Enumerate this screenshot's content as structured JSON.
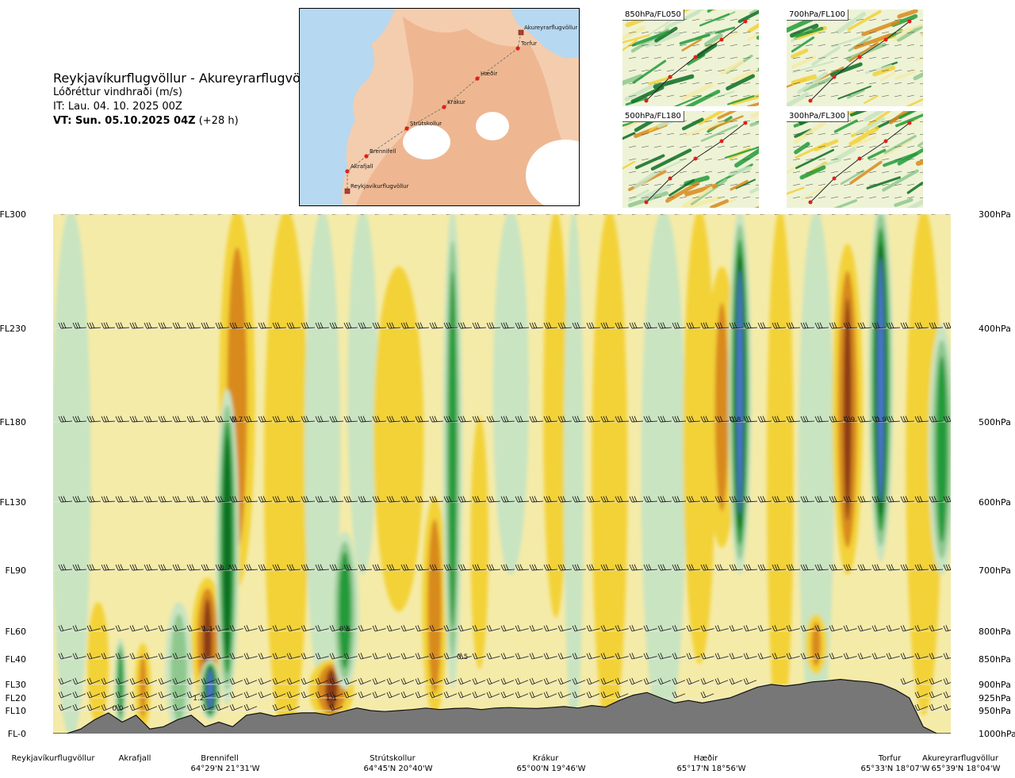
{
  "header": {
    "route": "Reykjavíkurflugvöllur - Akureyrarflugvöllur",
    "parameter": "Lóðréttur vindhraði (m/s)",
    "issue_time": "IT: Lau. 04. 10. 2025 00Z",
    "valid_label": "VT: Sun. 05.10.2025 04Z",
    "valid_offset": "(+28 h)"
  },
  "map": {
    "stations": [
      {
        "name": "Akureyrarflugvöllur"
      },
      {
        "name": "Torfur"
      },
      {
        "name": "Hæðir"
      },
      {
        "name": "Krákur"
      },
      {
        "name": "Strútskollur"
      },
      {
        "name": "Brennifell"
      },
      {
        "name": "Akrafjall"
      },
      {
        "name": "Reykjavíkurflugvöllur"
      }
    ]
  },
  "level_panels": [
    {
      "label": "850hPa/FL050"
    },
    {
      "label": "700hPa/FL100"
    },
    {
      "label": "500hPa/FL180"
    },
    {
      "label": "300hPa/FL300"
    }
  ],
  "colors": {
    "strong_down": "#8b3a12",
    "down": "#d98a1c",
    "weak_down": "#f3d238",
    "slight_down": "#f5eba8",
    "slight_up": "#c9e4c1",
    "weak_up": "#8fc88f",
    "up": "#239b3a",
    "strong_up": "#0b6f22",
    "very_strong_up": "#4a73c9",
    "terrain": "#777777"
  },
  "chart_data": {
    "type": "heatmap",
    "title": "Lóðréttur vindhraði (m/s)",
    "y_axis_left": [
      "FL300",
      "FL230",
      "FL180",
      "FL130",
      "FL90",
      "FL60",
      "FL40",
      "FL30",
      "FL20",
      "FL10",
      "FL-0"
    ],
    "y_axis_right": [
      "300hPa",
      "400hPa",
      "500hPa",
      "600hPa",
      "700hPa",
      "800hPa",
      "850hPa",
      "900hPa",
      "925hPa",
      "950hPa",
      "1000hPa"
    ],
    "pressure_levels_hpa": [
      300,
      400,
      500,
      600,
      700,
      800,
      850,
      900,
      925,
      950,
      1000
    ],
    "x_waypoints": [
      {
        "name": "Reykjavíkurflugvöllur",
        "coord": "",
        "dist": 0.0
      },
      {
        "name": "Akrafjall",
        "coord": "",
        "dist": 0.09
      },
      {
        "name": "Brennifell",
        "coord": "64°29'N 21°31'W",
        "dist": 0.19
      },
      {
        "name": "Strútskollur",
        "coord": "64°45'N 20°40'W",
        "dist": 0.38
      },
      {
        "name": "Krákur",
        "coord": "65°00'N 19°46'W",
        "dist": 0.56
      },
      {
        "name": "Hæðir",
        "coord": "65°17'N 18°56'W",
        "dist": 0.76
      },
      {
        "name": "Torfur",
        "coord": "65°33'N 18°07'W",
        "dist": 0.95
      },
      {
        "name": "Akureyrarflugvöllur",
        "coord": "65°39'N 18°04'W",
        "dist": 1.0
      }
    ],
    "contour_labels": [
      {
        "text": "0.7",
        "dist": 0.205,
        "p": 500
      },
      {
        "text": "0.7",
        "dist": 0.192,
        "p": 700
      },
      {
        "text": "1.1",
        "dist": 0.172,
        "p": 800
      },
      {
        "text": "1.2",
        "dist": 0.162,
        "p": 930
      },
      {
        "text": "0.0",
        "dist": 0.072,
        "p": 950
      },
      {
        "text": "0.6",
        "dist": 0.325,
        "p": 800
      },
      {
        "text": "0.5",
        "dist": 0.456,
        "p": 850
      },
      {
        "text": "1.1",
        "dist": 0.31,
        "p": 930
      },
      {
        "text": "0.8",
        "dist": 0.76,
        "p": 500
      },
      {
        "text": "0.9",
        "dist": 0.887,
        "p": 500
      },
      {
        "text": "0.9",
        "dist": 0.922,
        "p": 500
      }
    ],
    "bands": [
      {
        "dist": 0.02,
        "p_top": 300,
        "p_bot": 1000,
        "width": 0.022,
        "value": 0.2
      },
      {
        "dist": 0.05,
        "p_top": 760,
        "p_bot": 970,
        "width": 0.012,
        "value": -0.5
      },
      {
        "dist": 0.075,
        "p_top": 820,
        "p_bot": 980,
        "width": 0.007,
        "value": 0.6
      },
      {
        "dist": 0.1,
        "p_top": 830,
        "p_bot": 980,
        "width": 0.009,
        "value": -0.6
      },
      {
        "dist": 0.14,
        "p_top": 760,
        "p_bot": 990,
        "width": 0.015,
        "value": 0.5
      },
      {
        "dist": 0.172,
        "p_top": 720,
        "p_bot": 930,
        "width": 0.018,
        "value": -1.1
      },
      {
        "dist": 0.175,
        "p_top": 860,
        "p_bot": 960,
        "width": 0.012,
        "value": 1.2
      },
      {
        "dist": 0.205,
        "p_top": 300,
        "p_bot": 720,
        "width": 0.02,
        "value": -0.8
      },
      {
        "dist": 0.194,
        "p_top": 470,
        "p_bot": 930,
        "width": 0.013,
        "value": 0.8
      },
      {
        "dist": 0.26,
        "p_top": 300,
        "p_bot": 1000,
        "width": 0.025,
        "value": -0.2
      },
      {
        "dist": 0.3,
        "p_top": 300,
        "p_bot": 900,
        "width": 0.02,
        "value": 0.2
      },
      {
        "dist": 0.31,
        "p_top": 860,
        "p_bot": 960,
        "width": 0.025,
        "value": -1.0
      },
      {
        "dist": 0.325,
        "p_top": 650,
        "p_bot": 900,
        "width": 0.016,
        "value": 0.7
      },
      {
        "dist": 0.345,
        "p_top": 300,
        "p_bot": 700,
        "width": 0.017,
        "value": 0.3
      },
      {
        "dist": 0.385,
        "p_top": 350,
        "p_bot": 760,
        "width": 0.028,
        "value": -0.4
      },
      {
        "dist": 0.425,
        "p_top": 600,
        "p_bot": 950,
        "width": 0.014,
        "value": -0.8
      },
      {
        "dist": 0.445,
        "p_top": 300,
        "p_bot": 900,
        "width": 0.011,
        "value": 0.6
      },
      {
        "dist": 0.475,
        "p_top": 500,
        "p_bot": 860,
        "width": 0.01,
        "value": -0.3
      },
      {
        "dist": 0.51,
        "p_top": 300,
        "p_bot": 700,
        "width": 0.02,
        "value": 0.3
      },
      {
        "dist": 0.56,
        "p_top": 300,
        "p_bot": 770,
        "width": 0.014,
        "value": -0.5
      },
      {
        "dist": 0.58,
        "p_top": 300,
        "p_bot": 1000,
        "width": 0.011,
        "value": 0.3
      },
      {
        "dist": 0.62,
        "p_top": 300,
        "p_bot": 1000,
        "width": 0.02,
        "value": -0.2
      },
      {
        "dist": 0.68,
        "p_top": 300,
        "p_bot": 1000,
        "width": 0.025,
        "value": 0.2
      },
      {
        "dist": 0.72,
        "p_top": 300,
        "p_bot": 850,
        "width": 0.018,
        "value": -0.3
      },
      {
        "dist": 0.745,
        "p_top": 350,
        "p_bot": 660,
        "width": 0.018,
        "value": -0.6
      },
      {
        "dist": 0.765,
        "p_top": 300,
        "p_bot": 700,
        "width": 0.013,
        "value": 0.9
      },
      {
        "dist": 0.81,
        "p_top": 300,
        "p_bot": 1000,
        "width": 0.015,
        "value": -0.3
      },
      {
        "dist": 0.85,
        "p_top": 300,
        "p_bot": 1000,
        "width": 0.02,
        "value": 0.2
      },
      {
        "dist": 0.885,
        "p_top": 330,
        "p_bot": 700,
        "width": 0.017,
        "value": -0.9
      },
      {
        "dist": 0.922,
        "p_top": 290,
        "p_bot": 680,
        "width": 0.014,
        "value": 0.9
      },
      {
        "dist": 0.85,
        "p_top": 780,
        "p_bot": 870,
        "width": 0.012,
        "value": -0.6
      },
      {
        "dist": 0.97,
        "p_top": 300,
        "p_bot": 950,
        "width": 0.02,
        "value": -0.3
      },
      {
        "dist": 0.99,
        "p_top": 400,
        "p_bot": 700,
        "width": 0.015,
        "value": 0.7
      }
    ],
    "terrain_pressure_hpa": [
      1000,
      1000,
      990,
      970,
      955,
      975,
      960,
      990,
      985,
      970,
      960,
      985,
      975,
      985,
      960,
      955,
      962,
      958,
      955,
      955,
      960,
      952,
      945,
      950,
      952,
      950,
      948,
      945,
      948,
      946,
      945,
      948,
      945,
      944,
      945,
      946,
      944,
      942,
      945,
      940,
      943,
      930,
      920,
      915,
      925,
      935,
      930,
      935,
      930,
      925,
      915,
      905,
      900,
      903,
      900,
      895,
      893,
      890,
      893,
      895,
      900,
      910,
      925,
      985,
      1000,
      1000
    ],
    "barb_levels_hpa": [
      300,
      400,
      500,
      600,
      700,
      800,
      850,
      900,
      925,
      950
    ]
  }
}
